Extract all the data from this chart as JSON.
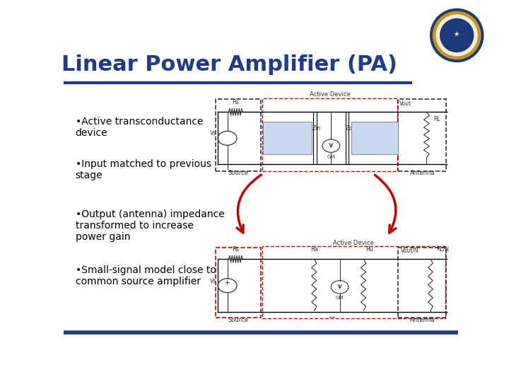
{
  "title": "Linear Power Amplifier (PA)",
  "title_color": "#1F3A8F",
  "title_fontsize": 22,
  "bg_color": "#FFFFFF",
  "line_color_top": "#1F3A8F",
  "line_color_bottom": "#1F3A8F",
  "bullet_points": [
    "•Active transconductance\ndevice",
    "•Input matched to previous\nstage",
    "•Output (antenna) impedance\ntransformed to increase\npower gain",
    "•Small-signal model close to\ncommon source amplifier"
  ],
  "bullet_fontsize": 10,
  "diagram_colors": {
    "dashed_box": "#444444",
    "solid_line": "#000000",
    "red_dashed": "#CC0000",
    "light_blue_box": "#C8D8F0",
    "arrow_red": "#CC0000"
  }
}
